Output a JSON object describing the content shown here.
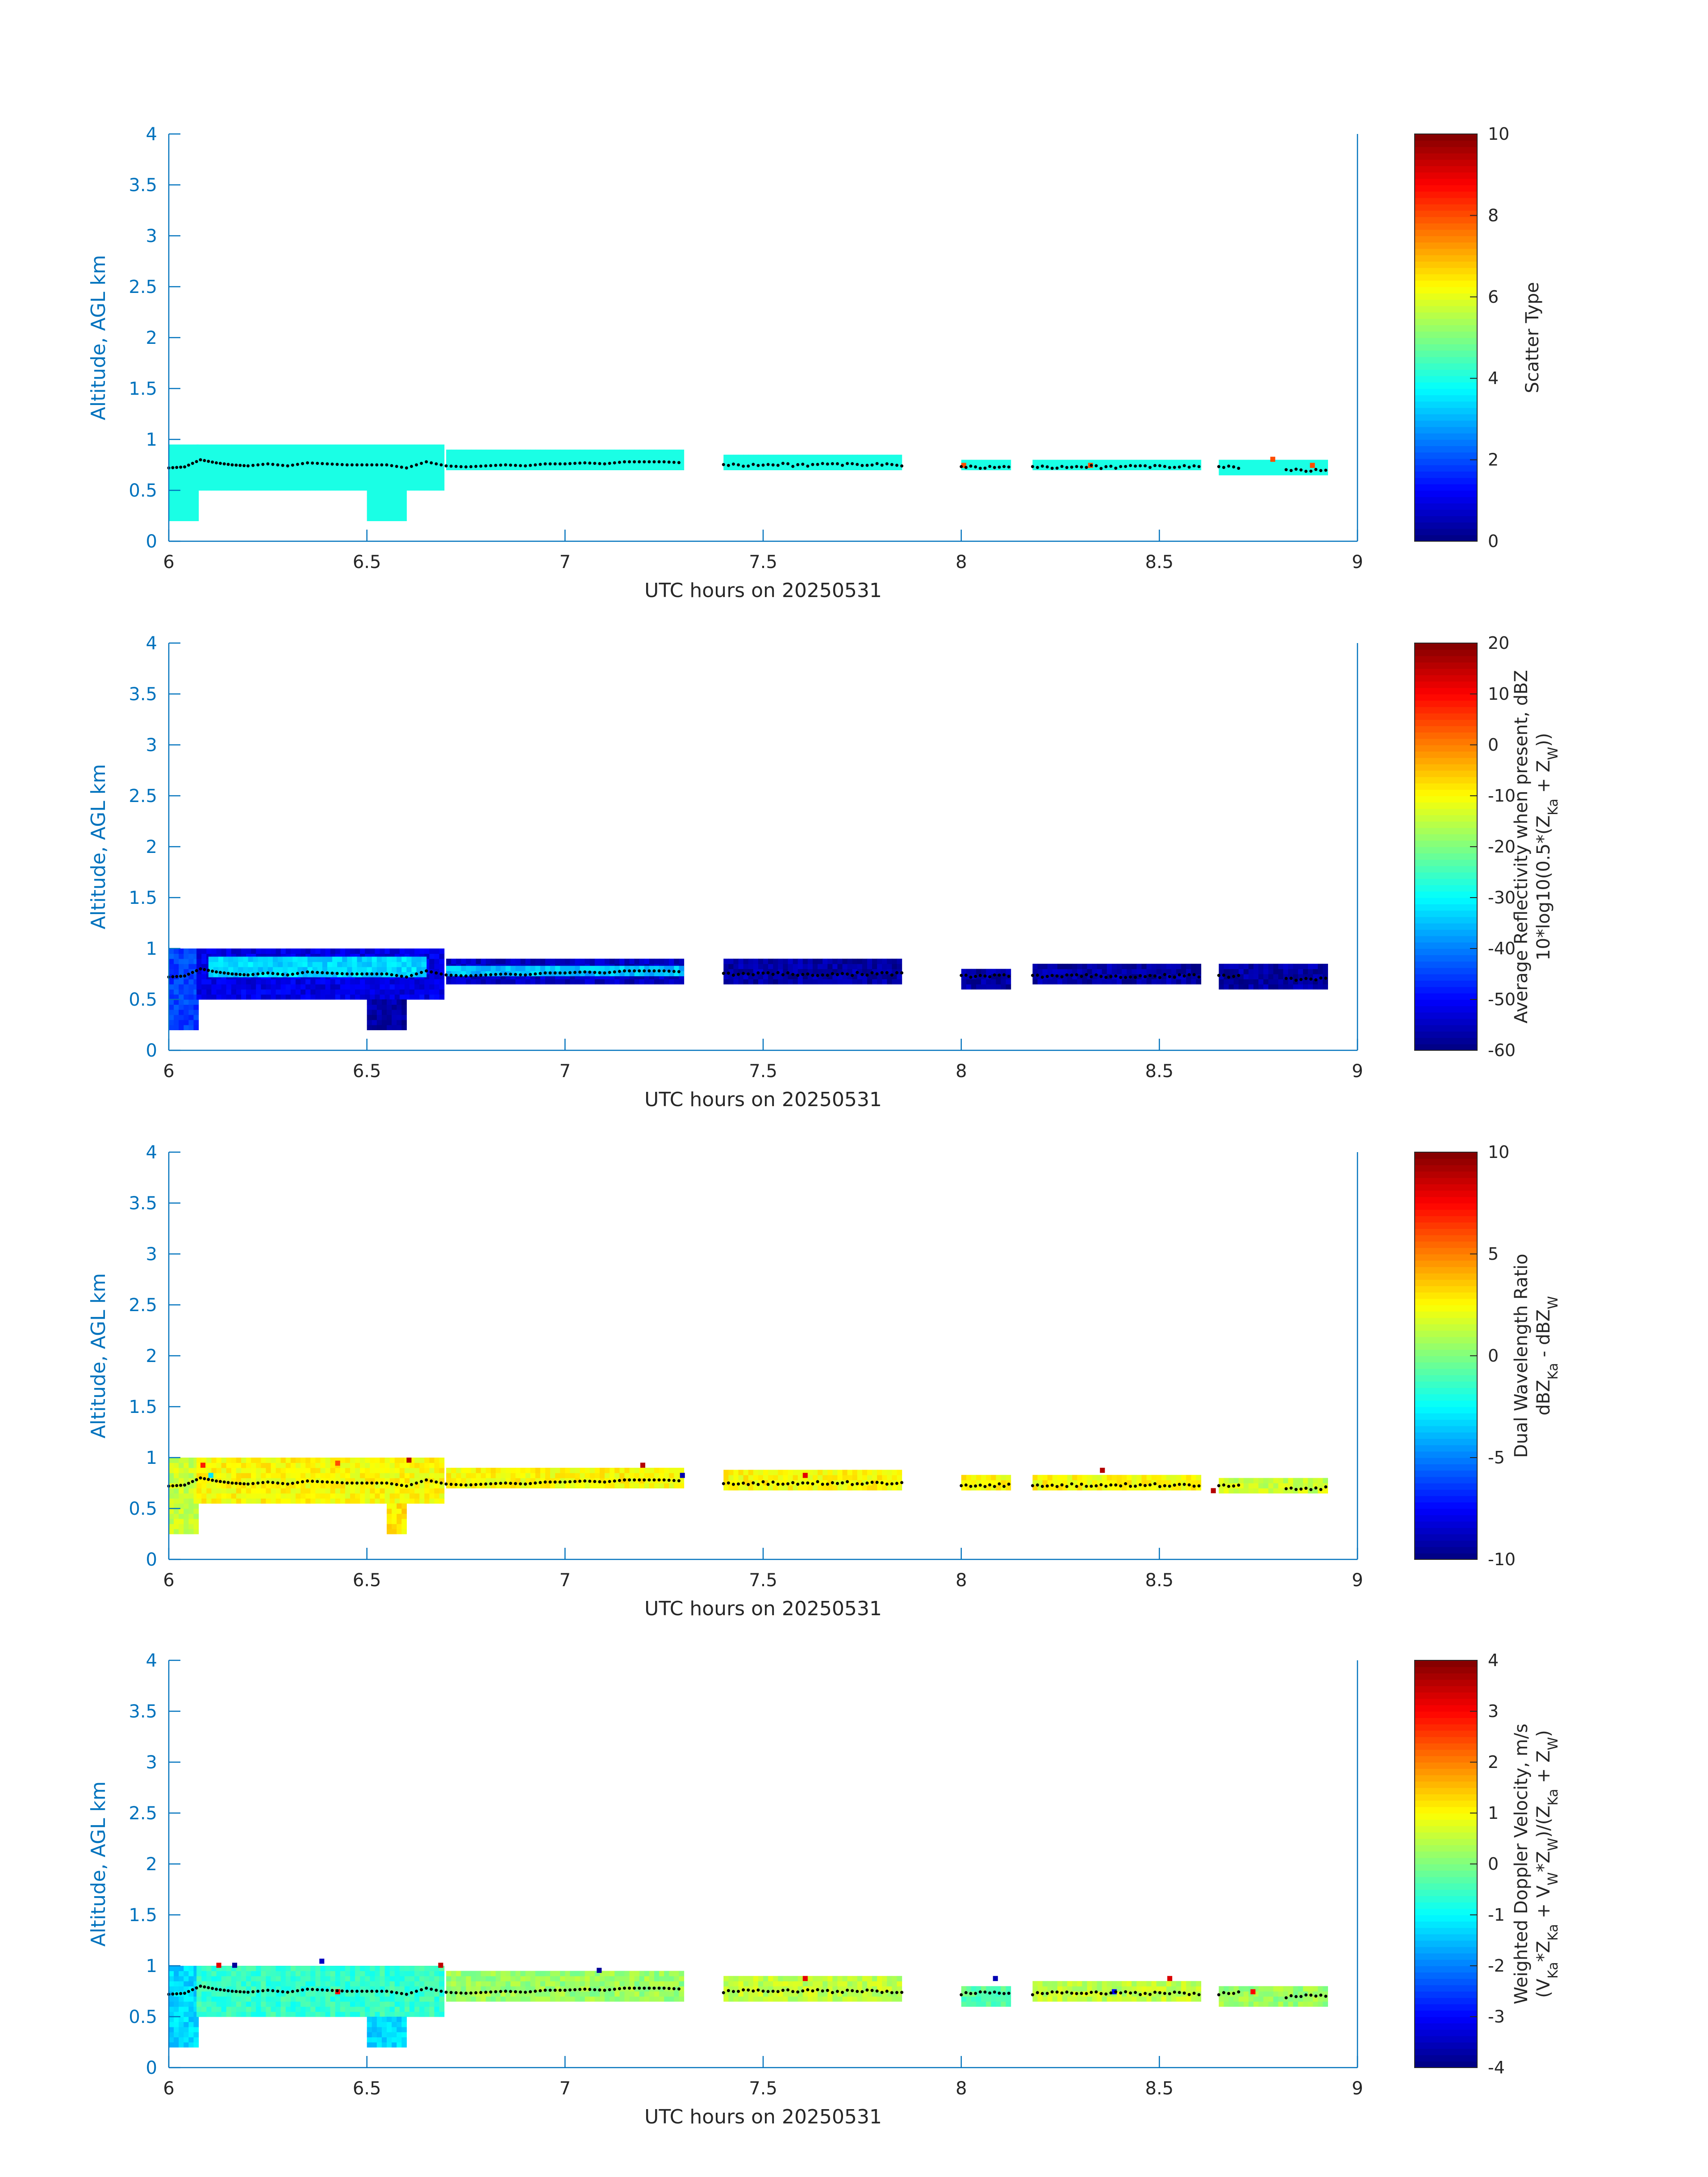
{
  "figure": {
    "background": "#ffffff",
    "axis_color": "#0072bd",
    "text_color": "#262626"
  },
  "chart_data": [
    {
      "type": "heatmap",
      "xlabel": "UTC hours on 20250531",
      "ylabel": "Altitude, AGL km",
      "xlim": [
        6,
        9
      ],
      "ylim": [
        0,
        4
      ],
      "xticks": [
        "6",
        "6.5",
        "7",
        "7.5",
        "8",
        "8.5",
        "9"
      ],
      "yticks": [
        "0",
        "0.5",
        "1",
        "1.5",
        "2",
        "2.5",
        "3",
        "3.5",
        "4"
      ],
      "colorbar": {
        "label_lines": [
          "Scatter Type"
        ],
        "range": [
          0,
          10
        ],
        "ticks": [
          "0",
          "2",
          "4",
          "6",
          "8",
          "10"
        ]
      },
      "cloud_regions": [
        {
          "x": [
            6.0,
            6.07
          ],
          "y": [
            0.2,
            0.95
          ],
          "value": 4
        },
        {
          "x": [
            6.07,
            6.7
          ],
          "y": [
            0.5,
            0.95
          ],
          "value": 4
        },
        {
          "x": [
            6.5,
            6.6
          ],
          "y": [
            0.2,
            0.5
          ],
          "value": 4
        },
        {
          "x": [
            6.7,
            7.3
          ],
          "y": [
            0.7,
            0.9
          ],
          "value": 4
        },
        {
          "x": [
            7.4,
            7.85
          ],
          "y": [
            0.7,
            0.85
          ],
          "value": 4
        },
        {
          "x": [
            8.0,
            8.13
          ],
          "y": [
            0.7,
            0.8
          ],
          "value": 4
        },
        {
          "x": [
            8.18,
            8.6
          ],
          "y": [
            0.7,
            0.8
          ],
          "value": 4
        },
        {
          "x": [
            8.65,
            8.92
          ],
          "y": [
            0.65,
            0.78
          ],
          "value": 4
        }
      ],
      "outliers": [
        {
          "x": 8.0,
          "y": 0.72,
          "value": 8
        },
        {
          "x": 8.32,
          "y": 0.72,
          "value": 8
        },
        {
          "x": 8.78,
          "y": 0.78,
          "value": 8
        },
        {
          "x": 8.88,
          "y": 0.72,
          "value": 8
        }
      ]
    },
    {
      "type": "heatmap",
      "xlabel": "UTC hours on 20250531",
      "ylabel": "Altitude, AGL km",
      "xlim": [
        6,
        9
      ],
      "ylim": [
        0,
        4
      ],
      "xticks": [
        "6",
        "6.5",
        "7",
        "7.5",
        "8",
        "8.5",
        "9"
      ],
      "yticks": [
        "0",
        "0.5",
        "1",
        "1.5",
        "2",
        "2.5",
        "3",
        "3.5",
        "4"
      ],
      "colorbar": {
        "label_lines": [
          "Average Reflectivity when present, dBZ",
          "10*log10(0.5*(Z_Ka + Z_W))"
        ],
        "range": [
          -60,
          20
        ],
        "ticks": [
          "-60",
          "-50",
          "-40",
          "-30",
          "-20",
          "-10",
          "0",
          "10",
          "20"
        ]
      },
      "cloud_regions": [
        {
          "x": [
            6.0,
            6.07
          ],
          "y": [
            0.2,
            1.0
          ],
          "value": -45
        },
        {
          "x": [
            6.07,
            6.7
          ],
          "y": [
            0.5,
            1.0
          ],
          "value": -52
        },
        {
          "x": [
            6.1,
            6.65
          ],
          "y": [
            0.72,
            0.92
          ],
          "value": -33
        },
        {
          "x": [
            6.5,
            6.6
          ],
          "y": [
            0.2,
            0.5
          ],
          "value": -57
        },
        {
          "x": [
            6.7,
            7.3
          ],
          "y": [
            0.65,
            0.92
          ],
          "value": -55
        },
        {
          "x": [
            6.7,
            7.3
          ],
          "y": [
            0.73,
            0.85
          ],
          "value": -35
        },
        {
          "x": [
            7.4,
            7.85
          ],
          "y": [
            0.65,
            0.88
          ],
          "value": -57
        },
        {
          "x": [
            8.0,
            8.13
          ],
          "y": [
            0.6,
            0.82
          ],
          "value": -57
        },
        {
          "x": [
            8.18,
            8.6
          ],
          "y": [
            0.65,
            0.85
          ],
          "value": -57
        },
        {
          "x": [
            8.65,
            8.92
          ],
          "y": [
            0.6,
            0.85
          ],
          "value": -57
        }
      ],
      "outliers": []
    },
    {
      "type": "heatmap",
      "xlabel": "UTC hours on 20250531",
      "ylabel": "Altitude, AGL km",
      "xlim": [
        6,
        9
      ],
      "ylim": [
        0,
        4
      ],
      "xticks": [
        "6",
        "6.5",
        "7",
        "7.5",
        "8",
        "8.5",
        "9"
      ],
      "yticks": [
        "0",
        "0.5",
        "1",
        "1.5",
        "2",
        "2.5",
        "3",
        "3.5",
        "4"
      ],
      "colorbar": {
        "label_lines": [
          "Dual Wavelength Ratio",
          "dBZ_Ka - dBZ_W"
        ],
        "range": [
          -10,
          10
        ],
        "ticks": [
          "-10",
          "-5",
          "0",
          "5",
          "10"
        ]
      },
      "cloud_regions": [
        {
          "x": [
            6.0,
            6.07
          ],
          "y": [
            0.25,
            0.98
          ],
          "value": 1.5
        },
        {
          "x": [
            6.07,
            6.7
          ],
          "y": [
            0.55,
            1.0
          ],
          "value": 2.5
        },
        {
          "x": [
            6.55,
            6.6
          ],
          "y": [
            0.25,
            0.55
          ],
          "value": 3
        },
        {
          "x": [
            6.7,
            7.3
          ],
          "y": [
            0.7,
            0.92
          ],
          "value": 2.5
        },
        {
          "x": [
            7.4,
            7.85
          ],
          "y": [
            0.68,
            0.88
          ],
          "value": 2.5
        },
        {
          "x": [
            8.0,
            8.13
          ],
          "y": [
            0.68,
            0.82
          ],
          "value": 2.5
        },
        {
          "x": [
            8.18,
            8.6
          ],
          "y": [
            0.68,
            0.85
          ],
          "value": 2.5
        },
        {
          "x": [
            8.65,
            8.92
          ],
          "y": [
            0.65,
            0.82
          ],
          "value": 1.5
        }
      ],
      "outliers": [
        {
          "x": 6.08,
          "y": 0.9,
          "value": 7
        },
        {
          "x": 6.1,
          "y": 0.8,
          "value": -3
        },
        {
          "x": 6.42,
          "y": 0.92,
          "value": 6
        },
        {
          "x": 6.6,
          "y": 0.95,
          "value": 9
        },
        {
          "x": 7.19,
          "y": 0.9,
          "value": 9
        },
        {
          "x": 7.29,
          "y": 0.8,
          "value": -9
        },
        {
          "x": 7.6,
          "y": 0.8,
          "value": 8
        },
        {
          "x": 8.35,
          "y": 0.85,
          "value": 9
        },
        {
          "x": 8.63,
          "y": 0.65,
          "value": 9
        }
      ]
    },
    {
      "type": "heatmap",
      "xlabel": "UTC hours on 20250531",
      "ylabel": "Altitude, AGL km",
      "xlim": [
        6,
        9
      ],
      "ylim": [
        0,
        4
      ],
      "xticks": [
        "6",
        "6.5",
        "7",
        "7.5",
        "8",
        "8.5",
        "9"
      ],
      "yticks": [
        "0",
        "0.5",
        "1",
        "1.5",
        "2",
        "2.5",
        "3",
        "3.5",
        "4"
      ],
      "colorbar": {
        "label_lines": [
          "Weighted Doppler Velocity, m/s",
          "(V_Ka*Z_Ka + V_W*Z_W)/(Z_Ka + Z_W)"
        ],
        "range": [
          -4,
          4
        ],
        "ticks": [
          "-4",
          "-3",
          "-2",
          "-1",
          "0",
          "1",
          "2",
          "3",
          "4"
        ]
      },
      "cloud_regions": [
        {
          "x": [
            6.0,
            6.07
          ],
          "y": [
            0.2,
            1.0
          ],
          "value": -1.3
        },
        {
          "x": [
            6.07,
            6.7
          ],
          "y": [
            0.5,
            1.0
          ],
          "value": -0.6
        },
        {
          "x": [
            6.5,
            6.6
          ],
          "y": [
            0.2,
            0.5
          ],
          "value": -1.3
        },
        {
          "x": [
            6.7,
            7.3
          ],
          "y": [
            0.65,
            0.95
          ],
          "value": 0.2
        },
        {
          "x": [
            7.4,
            7.85
          ],
          "y": [
            0.65,
            0.88
          ],
          "value": 0.5
        },
        {
          "x": [
            8.0,
            8.13
          ],
          "y": [
            0.6,
            0.82
          ],
          "value": -0.3
        },
        {
          "x": [
            8.18,
            8.6
          ],
          "y": [
            0.65,
            0.85
          ],
          "value": 0.5
        },
        {
          "x": [
            8.65,
            8.92
          ],
          "y": [
            0.6,
            0.8
          ],
          "value": 0.2
        }
      ],
      "outliers": [
        {
          "x": 6.12,
          "y": 0.98,
          "value": 3.2
        },
        {
          "x": 6.16,
          "y": 0.98,
          "value": -3.8
        },
        {
          "x": 6.38,
          "y": 1.02,
          "value": -3.5
        },
        {
          "x": 6.42,
          "y": 0.72,
          "value": 3.0
        },
        {
          "x": 6.68,
          "y": 0.98,
          "value": 3.5
        },
        {
          "x": 7.08,
          "y": 0.93,
          "value": -3.8
        },
        {
          "x": 7.6,
          "y": 0.85,
          "value": 3.2
        },
        {
          "x": 8.08,
          "y": 0.85,
          "value": -3.6
        },
        {
          "x": 8.38,
          "y": 0.72,
          "value": -3.0
        },
        {
          "x": 8.52,
          "y": 0.85,
          "value": 3.3
        },
        {
          "x": 8.73,
          "y": 0.72,
          "value": 3.0
        }
      ]
    }
  ],
  "cloud_base_line": {
    "color": "#000000",
    "x": [
      6.0,
      6.04,
      6.08,
      6.12,
      6.16,
      6.2,
      6.25,
      6.3,
      6.35,
      6.4,
      6.45,
      6.5,
      6.55,
      6.6,
      6.65,
      6.7,
      6.75,
      6.8,
      6.85,
      6.9,
      6.95,
      7.0,
      7.05,
      7.1,
      7.15,
      7.2,
      7.25,
      7.3
    ],
    "y": [
      0.72,
      0.73,
      0.8,
      0.77,
      0.75,
      0.74,
      0.76,
      0.74,
      0.77,
      0.76,
      0.75,
      0.75,
      0.75,
      0.72,
      0.78,
      0.74,
      0.73,
      0.74,
      0.75,
      0.74,
      0.76,
      0.76,
      0.77,
      0.76,
      0.78,
      0.78,
      0.78,
      0.77
    ],
    "segments": [
      {
        "x0": 7.4,
        "x1": 7.85,
        "y": 0.75
      },
      {
        "x0": 8.0,
        "x1": 8.12,
        "y": 0.73
      },
      {
        "x0": 8.18,
        "x1": 8.6,
        "y": 0.73
      },
      {
        "x0": 8.65,
        "x1": 8.7,
        "y": 0.73
      },
      {
        "x0": 8.82,
        "x1": 8.92,
        "y": 0.7
      }
    ]
  }
}
